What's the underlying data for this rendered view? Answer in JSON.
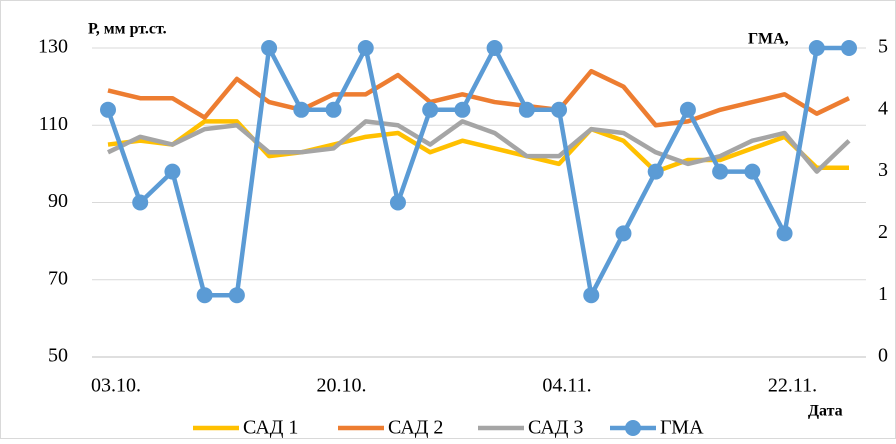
{
  "chart_data": {
    "type": "line",
    "y_label": "Р, мм рт.ст.",
    "y2_label": "ГМА,",
    "x_label": "Дата",
    "categories": [
      "03.10.",
      null,
      null,
      null,
      null,
      null,
      null,
      "20.10.",
      null,
      null,
      null,
      null,
      null,
      null,
      "04.11.",
      null,
      null,
      null,
      null,
      null,
      null,
      "22.11.",
      null,
      null
    ],
    "series": [
      {
        "name": "САД 1",
        "color": "#ffc000",
        "values": [
          105,
          106,
          105,
          111,
          111,
          102,
          103,
          105,
          107,
          108,
          103,
          106,
          104,
          102,
          100,
          109,
          106,
          98,
          101,
          101,
          104,
          107,
          99,
          99
        ]
      },
      {
        "name": "САД 2",
        "color": "#ed7d31",
        "values": [
          119,
          117,
          117,
          112,
          122,
          116,
          114,
          118,
          118,
          123,
          116,
          118,
          116,
          115,
          114,
          124,
          120,
          110,
          111,
          114,
          116,
          118,
          113,
          117
        ]
      },
      {
        "name": "САД 3",
        "color": "#a5a5a5",
        "values": [
          103,
          107,
          105,
          109,
          110,
          103,
          103,
          104,
          111,
          110,
          105,
          111,
          108,
          102,
          102,
          109,
          108,
          103,
          100,
          102,
          106,
          108,
          98,
          106
        ]
      },
      {
        "name": "ГМА",
        "color": "#5b9bd5",
        "axis": "y2",
        "marker": "circle",
        "values": [
          4,
          2.5,
          3,
          1,
          1,
          5,
          4,
          4,
          5,
          2.5,
          4,
          4,
          5,
          4,
          4,
          1,
          2,
          3,
          4,
          3,
          3,
          2,
          5,
          5
        ]
      }
    ],
    "ylim": [
      50,
      130
    ],
    "yticks": [
      50,
      70,
      90,
      110,
      130
    ],
    "y2lim": [
      0,
      5
    ],
    "y2ticks": [
      0,
      1,
      2,
      3,
      4,
      5
    ],
    "grid": true
  }
}
